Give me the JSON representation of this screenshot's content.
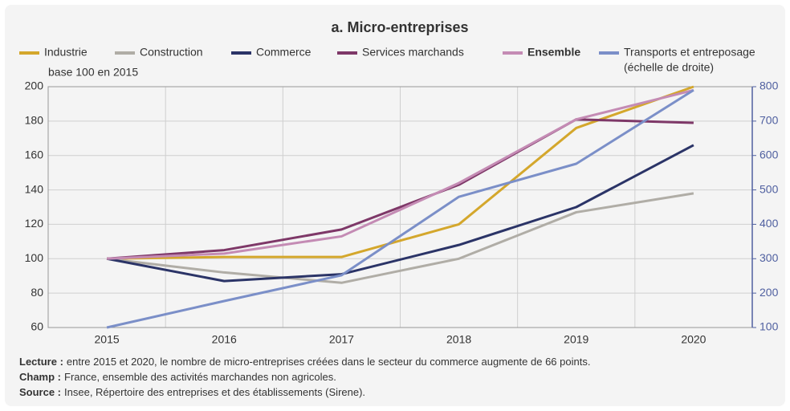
{
  "chart_data": {
    "type": "line",
    "title": "a. Micro-entreprises",
    "ylabel": "base 100 en 2015",
    "y2_label": "(échelle de droite)",
    "categories": [
      "2015",
      "2016",
      "2017",
      "2018",
      "2019",
      "2020"
    ],
    "series": [
      {
        "name": "Industrie",
        "color": "#d4a72c",
        "values": [
          100,
          101,
          101,
          120,
          176,
          200
        ]
      },
      {
        "name": "Construction",
        "color": "#b0ada6",
        "values": [
          100,
          92,
          86,
          100,
          127,
          138
        ]
      },
      {
        "name": "Commerce",
        "color": "#2b3467",
        "values": [
          100,
          87,
          91,
          108,
          130,
          166
        ]
      },
      {
        "name": "Services marchands",
        "color": "#7e3868",
        "values": [
          100,
          105,
          117,
          143,
          181,
          179
        ]
      },
      {
        "name": "Ensemble",
        "color": "#c48bb4",
        "bold": true,
        "values": [
          100,
          103,
          113,
          144,
          181,
          198
        ]
      },
      {
        "name": "Transports et entreposage",
        "color": "#7b8fc8",
        "axis": "y2",
        "values": [
          100,
          177,
          252,
          480,
          576,
          790
        ]
      }
    ],
    "ylim": [
      60,
      200
    ],
    "yticks": [
      60,
      80,
      100,
      120,
      140,
      160,
      180,
      200
    ],
    "y2lim": [
      100,
      800
    ],
    "y2ticks": [
      100,
      200,
      300,
      400,
      500,
      600,
      700,
      800
    ],
    "grid": true,
    "notes": [
      {
        "label": "Lecture :",
        "text": "entre 2015 et 2020, le nombre de micro-entreprises créées dans le secteur du commerce augmente de 66 points."
      },
      {
        "label": "Champ :",
        "text": "France, ensemble des activités marchandes non agricoles."
      },
      {
        "label": "Source :",
        "text": "Insee, Répertoire des entreprises et des établissements (Sirene)."
      }
    ]
  }
}
